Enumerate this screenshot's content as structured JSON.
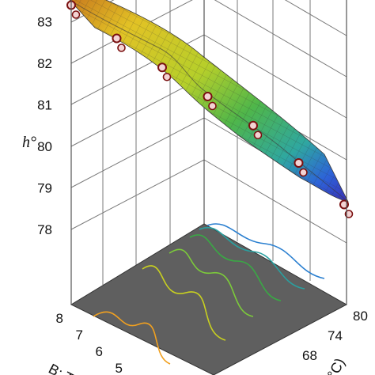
{
  "chart_data": {
    "type": "surface",
    "zlabel": "h°",
    "ylabel_fragment": "B: T",
    "xlabel_fragment": "(°C)",
    "z_ticks": [
      "78",
      "79",
      "80",
      "81",
      "82",
      "83"
    ],
    "y_ticks": [
      "8",
      "7",
      "6",
      "5"
    ],
    "x_ticks": [
      "80",
      "74",
      "68"
    ],
    "zlim": [
      78,
      83.5
    ],
    "surface_front_edge": [
      {
        "temp": 62,
        "h": 83.4
      },
      {
        "temp": 65,
        "h": 82.6
      },
      {
        "temp": 68,
        "h": 81.9
      },
      {
        "temp": 71,
        "h": 81.2
      },
      {
        "temp": 74,
        "h": 80.5
      },
      {
        "temp": 77,
        "h": 79.6
      },
      {
        "temp": 80,
        "h": 78.6
      }
    ],
    "floor_contour_colors": [
      "#f0a020",
      "#c8d020",
      "#7ccb3a",
      "#3aa845",
      "#2aa0a0",
      "#2a7fd0"
    ],
    "colors": {
      "floor": "#5f5f5f",
      "surface_high": "#e8d020",
      "surface_mid": "#3fae4a",
      "surface_low": "#2a4fd0",
      "point_fill": "#f3d3d3",
      "point_stroke": "#7a1010"
    }
  }
}
